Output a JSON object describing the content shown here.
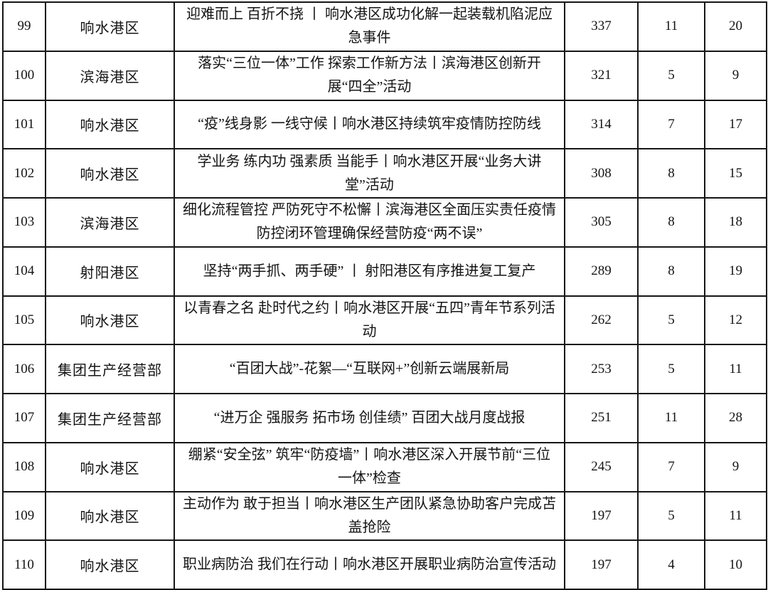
{
  "colors": {
    "border": "#161616",
    "text": "#141414",
    "background": "#ffffff"
  },
  "table": {
    "rows": [
      {
        "no": "99",
        "dept": "响水港区",
        "title": "迎难而上 百折不挠 丨 响水港区成功化解一起装载机陷泥应急事件",
        "c1": "337",
        "c2": "11",
        "c3": "20"
      },
      {
        "no": "100",
        "dept": "滨海港区",
        "title": "落实“三位一体”工作 探索工作新方法丨滨海港区创新开展“四全”活动",
        "c1": "321",
        "c2": "5",
        "c3": "9"
      },
      {
        "no": "101",
        "dept": "响水港区",
        "title": "“疫”线身影 一线守候丨响水港区持续筑牢疫情防控防线",
        "c1": "314",
        "c2": "7",
        "c3": "17"
      },
      {
        "no": "102",
        "dept": "响水港区",
        "title": "学业务 练内功 强素质 当能手丨响水港区开展“业务大讲堂”活动",
        "c1": "308",
        "c2": "8",
        "c3": "15"
      },
      {
        "no": "103",
        "dept": "滨海港区",
        "title": "细化流程管控 严防死守不松懈丨滨海港区全面压实责任疫情防控闭环管理确保经营防疫“两不误”",
        "c1": "305",
        "c2": "8",
        "c3": "18"
      },
      {
        "no": "104",
        "dept": "射阳港区",
        "title": "坚持“两手抓、两手硬” 丨 射阳港区有序推进复工复产",
        "c1": "289",
        "c2": "8",
        "c3": "19"
      },
      {
        "no": "105",
        "dept": "响水港区",
        "title": "以青春之名 赴时代之约丨响水港区开展“五四”青年节系列活动",
        "c1": "262",
        "c2": "5",
        "c3": "12"
      },
      {
        "no": "106",
        "dept": "集团生产经营部",
        "title": "“百团大战”-花絮—“互联网+”创新云端展新局",
        "c1": "253",
        "c2": "5",
        "c3": "11"
      },
      {
        "no": "107",
        "dept": "集团生产经营部",
        "title": "“进万企 强服务 拓市场 创佳绩” 百团大战月度战报",
        "c1": "251",
        "c2": "11",
        "c3": "28"
      },
      {
        "no": "108",
        "dept": "响水港区",
        "title": "绷紧“安全弦” 筑牢“防疫墙”丨响水港区深入开展节前“三位一体”检查",
        "c1": "245",
        "c2": "7",
        "c3": "9"
      },
      {
        "no": "109",
        "dept": "响水港区",
        "title": "主动作为 敢于担当丨响水港区生产团队紧急协助客户完成苫盖抢险",
        "c1": "197",
        "c2": "5",
        "c3": "11"
      },
      {
        "no": "110",
        "dept": "响水港区",
        "title": "职业病防治 我们在行动丨响水港区开展职业病防治宣传活动",
        "c1": "197",
        "c2": "4",
        "c3": "10"
      }
    ]
  }
}
